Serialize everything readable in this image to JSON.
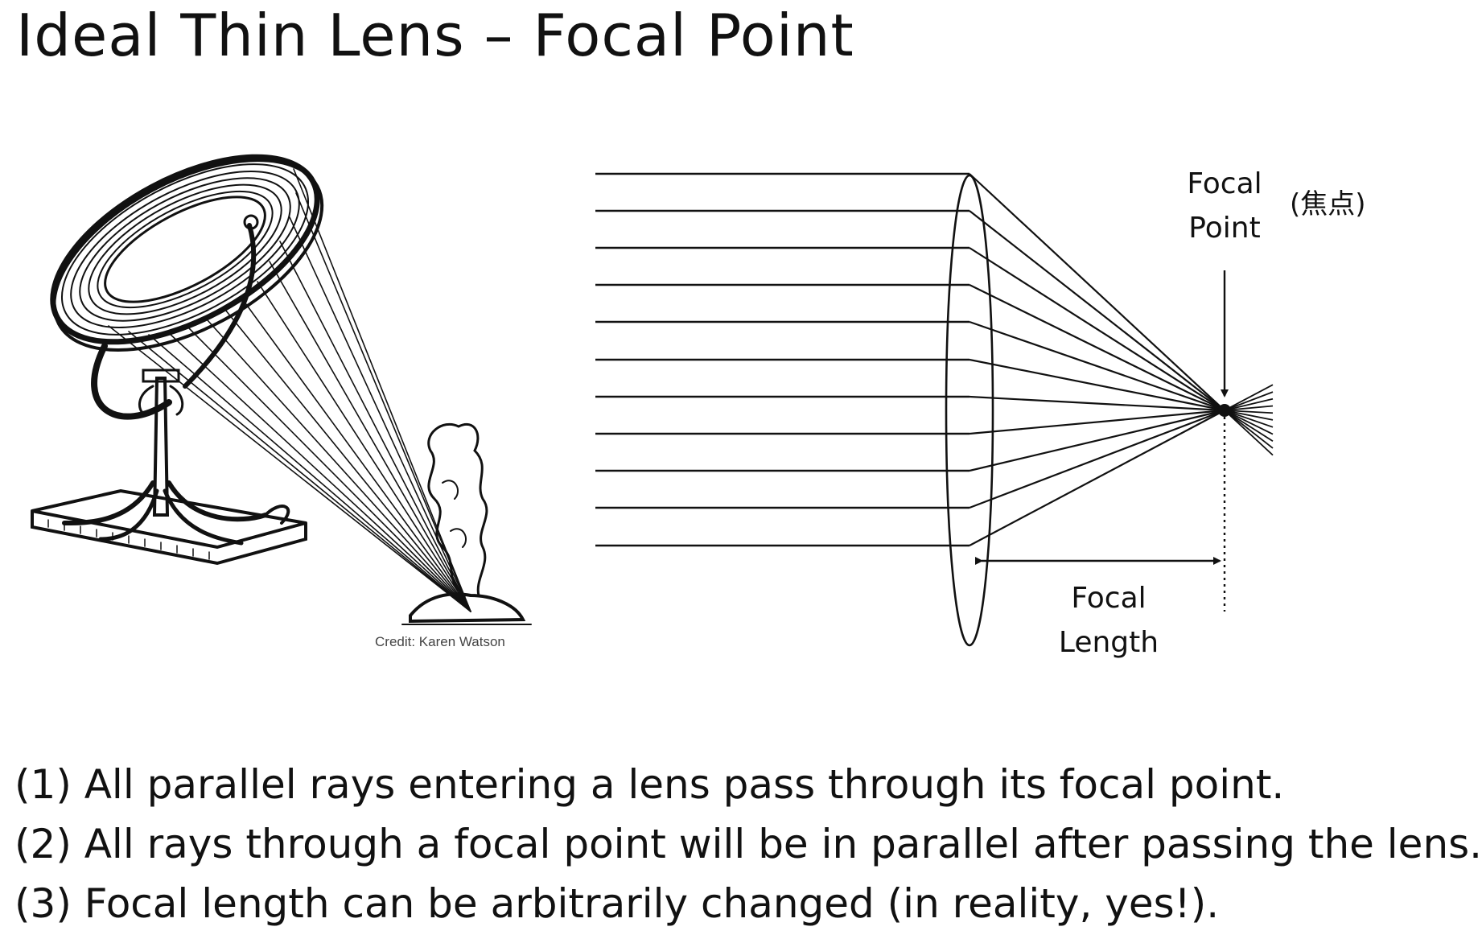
{
  "title": "Ideal Thin Lens – Focal Point",
  "illustration": {
    "credit": "Credit: Karen Watson"
  },
  "diagram": {
    "focal_point_label_1": "Focal",
    "focal_point_label_2": "Point",
    "focal_point_kanji": "(焦点)",
    "focal_length_label_1": "Focal",
    "focal_length_label_2": "Length"
  },
  "statements": [
    "(1) All parallel rays entering a lens pass through its focal point.",
    "(2) All rays through a focal point will be in parallel after passing the lens.",
    "(3) Focal length can be arbitrarily changed (in reality, yes!)."
  ],
  "colors": {
    "ink": "#111111",
    "background": "#ffffff"
  }
}
